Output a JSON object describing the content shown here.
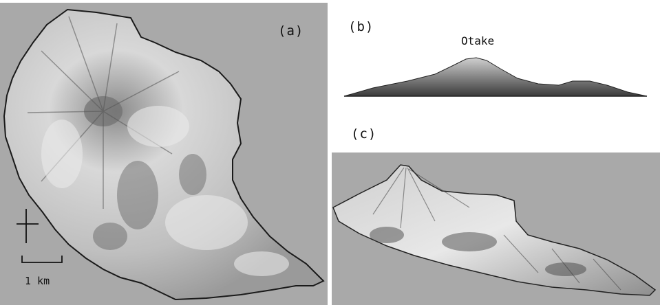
{
  "panels": {
    "a": {
      "label": "(a)",
      "scale_bar_text": "1 km"
    },
    "b": {
      "label": "(b)",
      "peak_name": "Otake"
    },
    "c": {
      "label": "(c)"
    }
  },
  "colors": {
    "background_gray": "#a9a9a9",
    "terrain_light": "#e6e6e6",
    "terrain_dark": "#3a3a3a",
    "coastline": "#1a1a1a"
  },
  "icons": [
    "north-arrow-icon",
    "scale-bar-icon"
  ]
}
